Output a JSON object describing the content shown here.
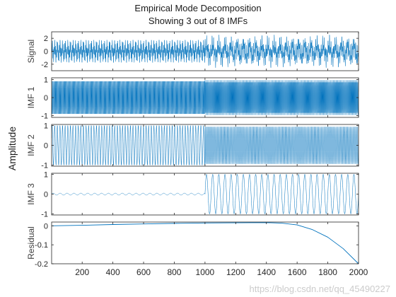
{
  "chart_data": {
    "type": "line",
    "title": "Empirical Mode Decomposition",
    "subtitle": "Showing 3 out of 8 IMFs",
    "shared_ylabel": "Amplitude",
    "x_tick_labels": [
      "200",
      "400",
      "600",
      "800",
      "1000",
      "1200",
      "1400",
      "1600",
      "1800",
      "2000"
    ],
    "xlim": [
      1,
      2000
    ],
    "line_color": "#0072BD",
    "panels": [
      {
        "name": "Signal",
        "ylabel": "Signal",
        "ylim": [
          -3,
          3
        ],
        "yticks": [
          -2,
          0,
          2
        ],
        "ytick_labels": [
          "-2",
          "0",
          "2"
        ],
        "segments": [
          {
            "x_start": 1,
            "x_end": 1000,
            "components": [
              {
                "amplitude": 1.0,
                "period": 5
              },
              {
                "amplitude": 0.8,
                "period": 17
              }
            ]
          },
          {
            "x_start": 1000,
            "x_end": 2000,
            "components": [
              {
                "amplitude": 1.0,
                "period": 5
              },
              {
                "amplitude": 0.8,
                "period": 9
              },
              {
                "amplitude": 0.8,
                "period": 40
              }
            ]
          }
        ]
      },
      {
        "name": "IMF 1",
        "ylabel": "IMF 1",
        "ylim": [
          -1.1,
          1.1
        ],
        "yticks": [
          -1,
          0,
          1
        ],
        "ytick_labels": [
          "-1",
          "0",
          "1"
        ],
        "segments": [
          {
            "x_start": 1,
            "x_end": 1000,
            "components": [
              {
                "amplitude": 0.95,
                "period": 5
              }
            ]
          },
          {
            "x_start": 1000,
            "x_end": 2000,
            "components": [
              {
                "amplitude": 0.98,
                "period": 4.5
              }
            ]
          }
        ]
      },
      {
        "name": "IMF 2",
        "ylabel": "IMF 2",
        "ylim": [
          -1.05,
          1.05
        ],
        "yticks": [
          -1,
          0,
          1
        ],
        "ytick_labels": [
          "-1",
          "0",
          "1"
        ],
        "segments": [
          {
            "x_start": 1,
            "x_end": 1000,
            "components": [
              {
                "amplitude": 1.0,
                "period": 17
              }
            ]
          },
          {
            "x_start": 1000,
            "x_end": 2000,
            "components": [
              {
                "amplitude": 0.95,
                "period": 9
              }
            ]
          }
        ]
      },
      {
        "name": "IMF 3",
        "ylabel": "IMF 3",
        "ylim": [
          -1.05,
          1.05
        ],
        "yticks": [
          -1,
          0,
          1
        ],
        "ytick_labels": [
          "-1",
          "0",
          "1"
        ],
        "segments": [
          {
            "x_start": 1,
            "x_end": 1000,
            "components": [
              {
                "amplitude": 0.05,
                "period": 45
              }
            ]
          },
          {
            "x_start": 1000,
            "x_end": 2000,
            "components": [
              {
                "amplitude": 1.0,
                "period": 40
              }
            ]
          }
        ]
      },
      {
        "name": "Residual",
        "ylabel": "Residual",
        "ylim": [
          -0.2,
          0.02
        ],
        "yticks": [
          -0.2,
          -0.1,
          0
        ],
        "ytick_labels": [
          "-0.2",
          "-0.1",
          "0"
        ],
        "points": [
          [
            1,
            0.0
          ],
          [
            200,
            0.003
          ],
          [
            400,
            0.007
          ],
          [
            600,
            0.01
          ],
          [
            800,
            0.013
          ],
          [
            1000,
            0.015
          ],
          [
            1200,
            0.016
          ],
          [
            1400,
            0.017
          ],
          [
            1500,
            0.014
          ],
          [
            1600,
            0.005
          ],
          [
            1700,
            -0.02
          ],
          [
            1800,
            -0.06
          ],
          [
            1900,
            -0.12
          ],
          [
            2000,
            -0.2
          ]
        ]
      }
    ]
  },
  "watermark": "https://blog.csdn.net/qq_45490227"
}
